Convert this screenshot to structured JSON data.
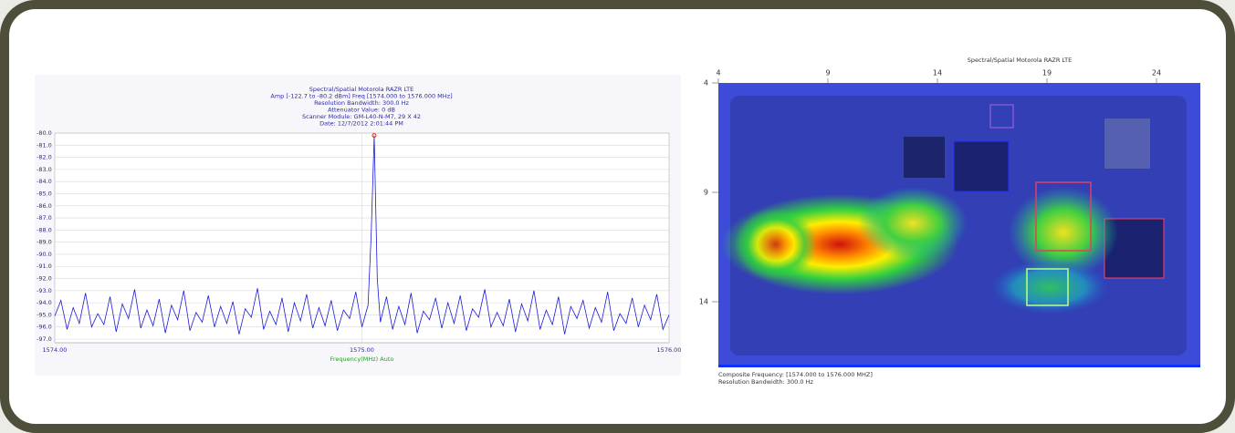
{
  "chart_data": [
    {
      "type": "line",
      "title_lines": [
        "Spectral/Spatial Motorola RAZR LTE",
        "Amp [-122.7 to -80.2 dBm]  Freq [1574.000 to 1576.000 MHz]",
        "Resolution Bandwidth: 300.0 Hz",
        "Attenuator Value: 0 dB",
        "Scanner Module: GM-L40-N-M7, 29 X 42",
        "Date: 12/7/2012 2:01:44 PM"
      ],
      "xlabel": "Frequency(MHz) Auto",
      "xlim": [
        1574,
        1576
      ],
      "xticks": [
        {
          "value": 1574,
          "label": "1574.00"
        },
        {
          "value": 1575,
          "label": "1575.00"
        },
        {
          "value": 1576,
          "label": "1576.00"
        }
      ],
      "ylim": [
        -97.3,
        -80
      ],
      "yticks": [
        {
          "value": -80,
          "label": "-80.0"
        },
        {
          "value": -81,
          "label": "-81.0"
        },
        {
          "value": -82,
          "label": "-82.0"
        },
        {
          "value": -83,
          "label": "-83.0"
        },
        {
          "value": -84,
          "label": "-84.0"
        },
        {
          "value": -85,
          "label": "-85.0"
        },
        {
          "value": -86,
          "label": "-86.0"
        },
        {
          "value": -87,
          "label": "-87.0"
        },
        {
          "value": -88,
          "label": "-88.0"
        },
        {
          "value": -89,
          "label": "-89.0"
        },
        {
          "value": -90,
          "label": "-90.0"
        },
        {
          "value": -91,
          "label": "-91.0"
        },
        {
          "value": -92,
          "label": "-92.0"
        },
        {
          "value": -93,
          "label": "-93.0"
        },
        {
          "value": -94,
          "label": "-94.0"
        },
        {
          "value": -95,
          "label": "-95.0"
        },
        {
          "value": -96,
          "label": "-96.0"
        },
        {
          "value": -97,
          "label": "-97.0"
        }
      ],
      "grid": true,
      "color": "#1a1adb",
      "peak_marker": {
        "x": 1575.04,
        "value": -80.2,
        "color": "#dd2222"
      },
      "x": [
        1574.0,
        1574.02,
        1574.04,
        1574.06,
        1574.08,
        1574.1,
        1574.12,
        1574.14,
        1574.16,
        1574.18,
        1574.2,
        1574.22,
        1574.24,
        1574.26,
        1574.28,
        1574.3,
        1574.32,
        1574.34,
        1574.36,
        1574.38,
        1574.4,
        1574.42,
        1574.44,
        1574.46,
        1574.48,
        1574.5,
        1574.52,
        1574.54,
        1574.56,
        1574.58,
        1574.6,
        1574.62,
        1574.64,
        1574.66,
        1574.68,
        1574.7,
        1574.72,
        1574.74,
        1574.76,
        1574.78,
        1574.8,
        1574.82,
        1574.84,
        1574.86,
        1574.88,
        1574.9,
        1574.92,
        1574.94,
        1574.96,
        1574.98,
        1575.0,
        1575.02,
        1575.03,
        1575.04,
        1575.05,
        1575.06,
        1575.08,
        1575.1,
        1575.12,
        1575.14,
        1575.16,
        1575.18,
        1575.2,
        1575.22,
        1575.24,
        1575.26,
        1575.28,
        1575.3,
        1575.32,
        1575.34,
        1575.36,
        1575.38,
        1575.4,
        1575.42,
        1575.44,
        1575.46,
        1575.48,
        1575.5,
        1575.52,
        1575.54,
        1575.56,
        1575.58,
        1575.6,
        1575.62,
        1575.64,
        1575.66,
        1575.68,
        1575.7,
        1575.72,
        1575.74,
        1575.76,
        1575.78,
        1575.8,
        1575.82,
        1575.84,
        1575.86,
        1575.88,
        1575.9,
        1575.92,
        1575.94,
        1575.96,
        1575.98,
        1576.0
      ],
      "values": [
        -95.1,
        -93.8,
        -96.2,
        -94.4,
        -95.7,
        -93.2,
        -96.0,
        -94.9,
        -95.8,
        -93.5,
        -96.4,
        -94.1,
        -95.3,
        -92.9,
        -96.1,
        -94.6,
        -95.9,
        -93.7,
        -96.5,
        -94.2,
        -95.4,
        -93.0,
        -96.3,
        -94.8,
        -95.6,
        -93.4,
        -96.0,
        -94.3,
        -95.7,
        -93.9,
        -96.6,
        -94.5,
        -95.2,
        -92.8,
        -96.2,
        -94.7,
        -95.8,
        -93.6,
        -96.4,
        -94.0,
        -95.5,
        -93.3,
        -96.1,
        -94.4,
        -95.9,
        -93.8,
        -96.3,
        -94.6,
        -95.3,
        -93.1,
        -96.0,
        -94.2,
        -88.5,
        -80.2,
        -92.0,
        -95.6,
        -93.5,
        -96.2,
        -94.3,
        -95.8,
        -93.2,
        -96.5,
        -94.7,
        -95.4,
        -93.6,
        -96.1,
        -94.0,
        -95.7,
        -93.4,
        -96.3,
        -94.5,
        -95.2,
        -92.9,
        -96.0,
        -94.8,
        -95.9,
        -93.7,
        -96.4,
        -94.1,
        -95.5,
        -93.0,
        -96.2,
        -94.6,
        -95.8,
        -93.5,
        -96.6,
        -94.3,
        -95.3,
        -93.8,
        -96.1,
        -94.4,
        -95.6,
        -93.1,
        -96.3,
        -94.9,
        -95.7,
        -93.6,
        -96.0,
        -94.2,
        -95.4,
        -93.3,
        -96.2,
        -95.0
      ]
    },
    {
      "type": "heatmap",
      "title": "Spectral/Spatial Motorola RAZR LTE",
      "xlim": [
        4,
        26
      ],
      "xticks": [
        4,
        9,
        14,
        19,
        24
      ],
      "ylim": [
        4,
        17
      ],
      "yticks": [
        4,
        9,
        14
      ],
      "annotations": [
        "Composite Frequency: [1574.000 to 1576.000 MHZ]",
        "Resolution Bandwidth: 300.0 Hz"
      ]
    }
  ]
}
